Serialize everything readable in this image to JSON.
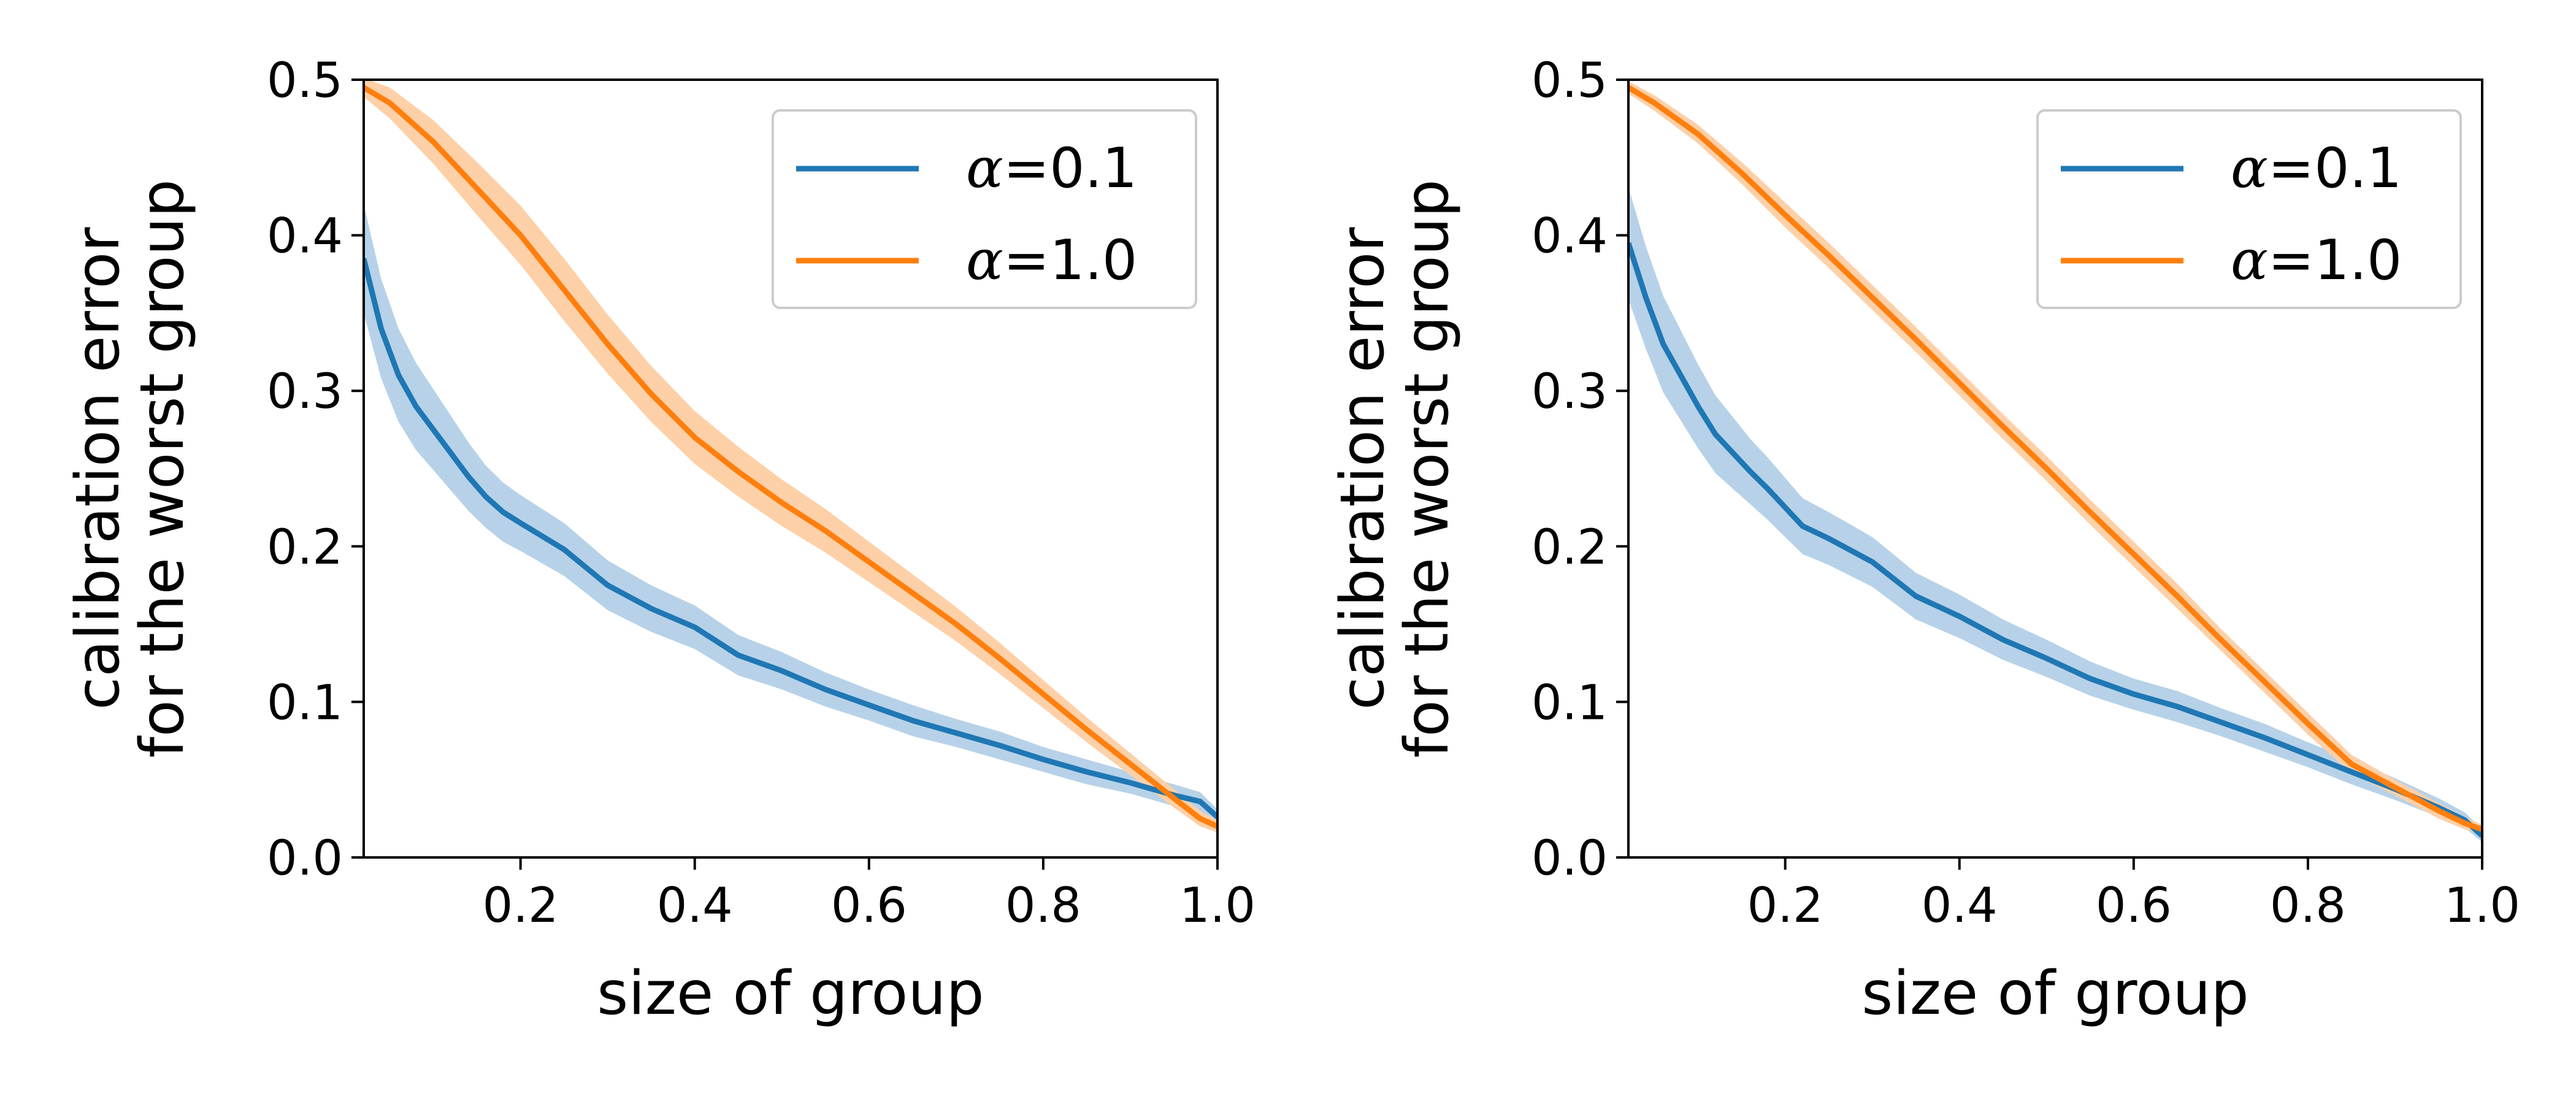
{
  "chart_data": [
    {
      "type": "line",
      "xlabel": "size of group",
      "ylabel_lines": [
        "calibration error",
        "for the worst group"
      ],
      "xlim": [
        0.02,
        1.0
      ],
      "ylim": [
        0.0,
        0.5
      ],
      "x_ticks": [
        0.2,
        0.4,
        0.6,
        0.8,
        1.0
      ],
      "x_tick_labels": [
        "0.2",
        "0.4",
        "0.6",
        "0.8",
        "1.0"
      ],
      "y_ticks": [
        0.0,
        0.1,
        0.2,
        0.3,
        0.4,
        0.5
      ],
      "y_tick_labels": [
        "0.0",
        "0.1",
        "0.2",
        "0.3",
        "0.4",
        "0.5"
      ],
      "grid": false,
      "legend_position": "top-right",
      "series": [
        {
          "name": "α=0.1",
          "legend_prefix": "α",
          "legend_suffix": "=0.1",
          "color": "#1f77b4",
          "band_color": "#b7d2e8",
          "x": [
            0.02,
            0.04,
            0.06,
            0.08,
            0.1,
            0.12,
            0.14,
            0.16,
            0.18,
            0.2,
            0.25,
            0.3,
            0.35,
            0.4,
            0.45,
            0.5,
            0.55,
            0.6,
            0.65,
            0.7,
            0.75,
            0.8,
            0.85,
            0.9,
            0.95,
            0.98,
            1.0
          ],
          "values": [
            0.385,
            0.34,
            0.31,
            0.29,
            0.275,
            0.26,
            0.245,
            0.232,
            0.222,
            0.215,
            0.198,
            0.175,
            0.16,
            0.148,
            0.13,
            0.12,
            0.108,
            0.098,
            0.088,
            0.08,
            0.072,
            0.063,
            0.055,
            0.048,
            0.04,
            0.036,
            0.026
          ],
          "band_half_width": [
            0.035,
            0.032,
            0.03,
            0.028,
            0.026,
            0.024,
            0.022,
            0.02,
            0.019,
            0.018,
            0.017,
            0.016,
            0.015,
            0.014,
            0.013,
            0.012,
            0.011,
            0.01,
            0.01,
            0.009,
            0.009,
            0.008,
            0.008,
            0.007,
            0.007,
            0.006,
            0.005
          ]
        },
        {
          "name": "α=1.0",
          "legend_prefix": "α",
          "legend_suffix": "=1.0",
          "color": "#ff7f0e",
          "band_color": "#fdd0a8",
          "x": [
            0.02,
            0.05,
            0.1,
            0.15,
            0.2,
            0.25,
            0.3,
            0.35,
            0.4,
            0.45,
            0.5,
            0.55,
            0.6,
            0.65,
            0.7,
            0.75,
            0.8,
            0.85,
            0.9,
            0.95,
            0.98,
            1.0
          ],
          "values": [
            0.495,
            0.485,
            0.46,
            0.43,
            0.4,
            0.365,
            0.33,
            0.298,
            0.27,
            0.248,
            0.228,
            0.21,
            0.19,
            0.17,
            0.15,
            0.128,
            0.105,
            0.082,
            0.06,
            0.038,
            0.025,
            0.02
          ],
          "band_half_width": [
            0.006,
            0.01,
            0.014,
            0.017,
            0.019,
            0.02,
            0.019,
            0.018,
            0.017,
            0.016,
            0.015,
            0.014,
            0.013,
            0.012,
            0.011,
            0.01,
            0.009,
            0.008,
            0.007,
            0.006,
            0.005,
            0.004
          ]
        }
      ]
    },
    {
      "type": "line",
      "xlabel": "size of group",
      "ylabel_lines": [
        "calibration error",
        "for the worst group"
      ],
      "xlim": [
        0.02,
        1.0
      ],
      "ylim": [
        0.0,
        0.5
      ],
      "x_ticks": [
        0.2,
        0.4,
        0.6,
        0.8,
        1.0
      ],
      "x_tick_labels": [
        "0.2",
        "0.4",
        "0.6",
        "0.8",
        "1.0"
      ],
      "y_ticks": [
        0.0,
        0.1,
        0.2,
        0.3,
        0.4,
        0.5
      ],
      "y_tick_labels": [
        "0.0",
        "0.1",
        "0.2",
        "0.3",
        "0.4",
        "0.5"
      ],
      "grid": false,
      "legend_position": "top-right",
      "series": [
        {
          "name": "α=0.1",
          "legend_prefix": "α",
          "legend_suffix": "=0.1",
          "color": "#1f77b4",
          "band_color": "#b7d2e8",
          "x": [
            0.02,
            0.04,
            0.06,
            0.08,
            0.1,
            0.12,
            0.14,
            0.16,
            0.18,
            0.2,
            0.22,
            0.25,
            0.3,
            0.35,
            0.4,
            0.45,
            0.5,
            0.55,
            0.6,
            0.65,
            0.7,
            0.75,
            0.8,
            0.85,
            0.9,
            0.95,
            0.98,
            1.0
          ],
          "values": [
            0.395,
            0.36,
            0.33,
            0.31,
            0.29,
            0.272,
            0.26,
            0.248,
            0.237,
            0.225,
            0.213,
            0.205,
            0.19,
            0.168,
            0.155,
            0.14,
            0.128,
            0.115,
            0.105,
            0.097,
            0.087,
            0.077,
            0.066,
            0.055,
            0.044,
            0.032,
            0.024,
            0.014
          ],
          "band_half_width": [
            0.036,
            0.033,
            0.031,
            0.029,
            0.027,
            0.025,
            0.023,
            0.021,
            0.02,
            0.019,
            0.018,
            0.017,
            0.016,
            0.015,
            0.014,
            0.013,
            0.012,
            0.011,
            0.01,
            0.01,
            0.009,
            0.009,
            0.008,
            0.008,
            0.007,
            0.006,
            0.005,
            0.004
          ]
        },
        {
          "name": "α=1.0",
          "legend_prefix": "α",
          "legend_suffix": "=1.0",
          "color": "#ff7f0e",
          "band_color": "#fdd0a8",
          "x": [
            0.02,
            0.05,
            0.1,
            0.15,
            0.2,
            0.25,
            0.3,
            0.35,
            0.4,
            0.45,
            0.5,
            0.55,
            0.6,
            0.65,
            0.7,
            0.75,
            0.8,
            0.85,
            0.9,
            0.95,
            0.98,
            1.0
          ],
          "values": [
            0.495,
            0.485,
            0.465,
            0.44,
            0.413,
            0.387,
            0.36,
            0.333,
            0.305,
            0.277,
            0.25,
            0.222,
            0.195,
            0.168,
            0.14,
            0.113,
            0.086,
            0.06,
            0.045,
            0.03,
            0.022,
            0.018
          ],
          "band_half_width": [
            0.004,
            0.005,
            0.006,
            0.007,
            0.008,
            0.008,
            0.008,
            0.008,
            0.008,
            0.008,
            0.008,
            0.008,
            0.008,
            0.008,
            0.007,
            0.007,
            0.007,
            0.006,
            0.005,
            0.005,
            0.004,
            0.003
          ]
        }
      ]
    }
  ]
}
